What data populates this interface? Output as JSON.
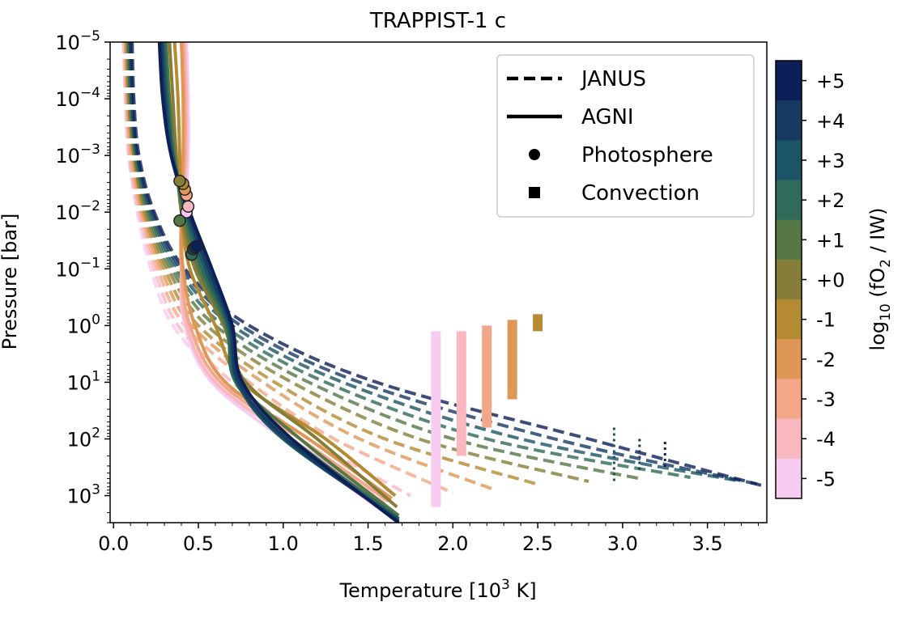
{
  "chart_data": {
    "type": "line",
    "title": "TRAPPIST-1 c",
    "xlabel_prefix": "Temperature [10",
    "xlabel_sup": "3",
    "xlabel_suffix": " K]",
    "ylabel": "Pressure [bar]",
    "xlim": [
      -0.02,
      3.85
    ],
    "ylim_bar": [
      1e-05,
      3000
    ],
    "y_scale": "log-inverted",
    "x_ticks": [
      {
        "value": 0.0,
        "label": "0.0"
      },
      {
        "value": 0.5,
        "label": "0.5"
      },
      {
        "value": 1.0,
        "label": "1.0"
      },
      {
        "value": 1.5,
        "label": "1.5"
      },
      {
        "value": 2.0,
        "label": "2.0"
      },
      {
        "value": 2.5,
        "label": "2.5"
      },
      {
        "value": 3.0,
        "label": "3.0"
      },
      {
        "value": 3.5,
        "label": "3.5"
      }
    ],
    "y_ticks": [
      {
        "exp": -5,
        "base": "10",
        "sup": "−5"
      },
      {
        "exp": -4,
        "base": "10",
        "sup": "−4"
      },
      {
        "exp": -3,
        "base": "10",
        "sup": "−3"
      },
      {
        "exp": -2,
        "base": "10",
        "sup": "−2"
      },
      {
        "exp": -1,
        "base": "10",
        "sup": "−1"
      },
      {
        "exp": 0,
        "base": "10",
        "sup": "0"
      },
      {
        "exp": 1,
        "base": "10",
        "sup": "1"
      },
      {
        "exp": 2,
        "base": "10",
        "sup": "2"
      },
      {
        "exp": 3,
        "base": "10",
        "sup": "3"
      }
    ],
    "legend": {
      "position": "top-right",
      "entries": [
        {
          "style": "dashed",
          "label": "JANUS"
        },
        {
          "style": "solid",
          "label": "AGNI"
        },
        {
          "style": "circle",
          "label": "Photosphere"
        },
        {
          "style": "square",
          "label": "Convection"
        }
      ]
    },
    "colorbar": {
      "label_prefix": "log",
      "label_sub": "10",
      "label_mid": " (fO",
      "label_sub2": "2",
      "label_suffix": " / IW)",
      "levels": [
        {
          "value": 5,
          "label": "+5",
          "color": "#0c1f58"
        },
        {
          "value": 4,
          "label": "+4",
          "color": "#173a63"
        },
        {
          "value": 3,
          "label": "+3",
          "color": "#1b5464"
        },
        {
          "value": 2,
          "label": "+2",
          "color": "#2f6a5a"
        },
        {
          "value": 1,
          "label": "+1",
          "color": "#557745"
        },
        {
          "value": 0,
          "label": "+0",
          "color": "#857d38"
        },
        {
          "value": -1,
          "label": "-1",
          "color": "#b48a32"
        },
        {
          "value": -2,
          "label": "-2",
          "color": "#df9758"
        },
        {
          "value": -3,
          "label": "-3",
          "color": "#f4a688"
        },
        {
          "value": -4,
          "label": "-4",
          "color": "#f9b7c0"
        },
        {
          "value": -5,
          "label": "-5",
          "color": "#f8cbf0"
        }
      ]
    },
    "series": [
      {
        "model": "JANUS",
        "fo2": -5,
        "color": "#f8cbf0",
        "points": [
          [
            0.06,
            -5
          ],
          [
            0.07,
            -4
          ],
          [
            0.09,
            -3
          ],
          [
            0.14,
            -2
          ],
          [
            0.22,
            -1
          ],
          [
            0.35,
            0
          ],
          [
            0.65,
            1
          ],
          [
            1.05,
            2
          ],
          [
            1.6,
            3.1
          ]
        ]
      },
      {
        "model": "JANUS",
        "fo2": -4,
        "color": "#f9b7c0",
        "points": [
          [
            0.06,
            -5
          ],
          [
            0.07,
            -4
          ],
          [
            0.09,
            -3
          ],
          [
            0.15,
            -2
          ],
          [
            0.24,
            -1
          ],
          [
            0.38,
            0
          ],
          [
            0.7,
            1
          ],
          [
            1.15,
            2
          ],
          [
            1.75,
            3.0
          ]
        ]
      },
      {
        "model": "JANUS",
        "fo2": -3,
        "color": "#f4a688",
        "points": [
          [
            0.07,
            -5
          ],
          [
            0.08,
            -4
          ],
          [
            0.1,
            -3
          ],
          [
            0.16,
            -2
          ],
          [
            0.26,
            -1
          ],
          [
            0.42,
            0
          ],
          [
            0.8,
            1
          ],
          [
            1.3,
            2
          ],
          [
            2.0,
            2.95
          ]
        ]
      },
      {
        "model": "JANUS",
        "fo2": -2,
        "color": "#df9758",
        "points": [
          [
            0.07,
            -5
          ],
          [
            0.08,
            -4
          ],
          [
            0.11,
            -3
          ],
          [
            0.17,
            -2
          ],
          [
            0.28,
            -1
          ],
          [
            0.46,
            0
          ],
          [
            0.88,
            1
          ],
          [
            1.45,
            2
          ],
          [
            2.25,
            2.9
          ]
        ]
      },
      {
        "model": "JANUS",
        "fo2": -1,
        "color": "#b48a32",
        "points": [
          [
            0.08,
            -5
          ],
          [
            0.09,
            -4
          ],
          [
            0.12,
            -3
          ],
          [
            0.18,
            -2
          ],
          [
            0.3,
            -1
          ],
          [
            0.5,
            0
          ],
          [
            0.95,
            1
          ],
          [
            1.6,
            2
          ],
          [
            2.5,
            2.8
          ]
        ]
      },
      {
        "model": "JANUS",
        "fo2": 0,
        "color": "#857d38",
        "points": [
          [
            0.08,
            -5
          ],
          [
            0.09,
            -4
          ],
          [
            0.12,
            -3
          ],
          [
            0.19,
            -2
          ],
          [
            0.32,
            -1
          ],
          [
            0.55,
            0
          ],
          [
            1.05,
            1
          ],
          [
            1.8,
            2
          ],
          [
            2.8,
            2.75
          ]
        ]
      },
      {
        "model": "JANUS",
        "fo2": 1,
        "color": "#557745",
        "points": [
          [
            0.09,
            -5
          ],
          [
            0.1,
            -4
          ],
          [
            0.13,
            -3
          ],
          [
            0.2,
            -2
          ],
          [
            0.34,
            -1
          ],
          [
            0.6,
            0
          ],
          [
            1.15,
            1
          ],
          [
            2.0,
            2
          ],
          [
            3.1,
            2.7
          ]
        ]
      },
      {
        "model": "JANUS",
        "fo2": 2,
        "color": "#2f6a5a",
        "points": [
          [
            0.09,
            -5
          ],
          [
            0.1,
            -4
          ],
          [
            0.13,
            -3
          ],
          [
            0.21,
            -2
          ],
          [
            0.36,
            -1
          ],
          [
            0.65,
            0
          ],
          [
            1.25,
            1
          ],
          [
            2.2,
            2
          ],
          [
            3.4,
            2.68
          ]
        ]
      },
      {
        "model": "JANUS",
        "fo2": 3,
        "color": "#1b5464",
        "points": [
          [
            0.1,
            -5
          ],
          [
            0.11,
            -4
          ],
          [
            0.14,
            -3
          ],
          [
            0.22,
            -2
          ],
          [
            0.38,
            -1
          ],
          [
            0.7,
            0
          ],
          [
            1.35,
            1
          ],
          [
            2.4,
            2
          ],
          [
            3.7,
            2.75
          ]
        ]
      },
      {
        "model": "JANUS",
        "fo2": 4,
        "color": "#173a63",
        "points": [
          [
            0.1,
            -5
          ],
          [
            0.11,
            -4
          ],
          [
            0.14,
            -3
          ],
          [
            0.23,
            -2
          ],
          [
            0.4,
            -1
          ],
          [
            0.75,
            0
          ],
          [
            1.45,
            1
          ],
          [
            2.6,
            2
          ],
          [
            3.8,
            2.8
          ]
        ]
      },
      {
        "model": "JANUS",
        "fo2": 5,
        "color": "#0c1f58",
        "points": [
          [
            0.11,
            -5
          ],
          [
            0.12,
            -4
          ],
          [
            0.15,
            -3
          ],
          [
            0.24,
            -2
          ],
          [
            0.42,
            -1
          ],
          [
            0.8,
            0
          ],
          [
            1.55,
            1
          ],
          [
            2.8,
            2
          ],
          [
            3.82,
            2.82
          ]
        ]
      },
      {
        "model": "AGNI",
        "fo2": -5,
        "color": "#f8cbf0",
        "points": [
          [
            0.43,
            -5
          ],
          [
            0.44,
            -4
          ],
          [
            0.44,
            -3
          ],
          [
            0.42,
            -2
          ],
          [
            0.4,
            -1
          ],
          [
            0.42,
            0
          ],
          [
            0.58,
            1
          ],
          [
            1.0,
            2
          ],
          [
            1.55,
            3.2
          ]
        ]
      },
      {
        "model": "AGNI",
        "fo2": -4,
        "color": "#f9b7c0",
        "points": [
          [
            0.42,
            -5
          ],
          [
            0.43,
            -4
          ],
          [
            0.43,
            -3
          ],
          [
            0.41,
            -2
          ],
          [
            0.4,
            -1
          ],
          [
            0.43,
            0
          ],
          [
            0.6,
            1
          ],
          [
            1.05,
            2
          ],
          [
            1.6,
            3.15
          ]
        ]
      },
      {
        "model": "AGNI",
        "fo2": -3,
        "color": "#f4a688",
        "points": [
          [
            0.41,
            -5
          ],
          [
            0.42,
            -4
          ],
          [
            0.42,
            -3
          ],
          [
            0.4,
            -2
          ],
          [
            0.4,
            -1
          ],
          [
            0.45,
            0
          ],
          [
            0.63,
            1
          ],
          [
            1.1,
            2
          ],
          [
            1.62,
            3.1
          ]
        ]
      },
      {
        "model": "AGNI",
        "fo2": -2,
        "color": "#df9758",
        "points": [
          [
            0.4,
            -5
          ],
          [
            0.41,
            -4
          ],
          [
            0.41,
            -3
          ],
          [
            0.4,
            -2
          ],
          [
            0.41,
            -1
          ],
          [
            0.48,
            0
          ],
          [
            0.66,
            1
          ],
          [
            1.15,
            2
          ],
          [
            1.64,
            3.05
          ]
        ]
      },
      {
        "model": "AGNI",
        "fo2": -1,
        "color": "#b48a32",
        "points": [
          [
            0.36,
            -5
          ],
          [
            0.38,
            -4
          ],
          [
            0.39,
            -3
          ],
          [
            0.4,
            -2
          ],
          [
            0.45,
            -1
          ],
          [
            0.6,
            0
          ],
          [
            0.76,
            1
          ],
          [
            1.25,
            2
          ],
          [
            1.66,
            3.0
          ]
        ]
      },
      {
        "model": "AGNI",
        "fo2": 0,
        "color": "#857d38",
        "points": [
          [
            0.33,
            -5
          ],
          [
            0.35,
            -4
          ],
          [
            0.37,
            -3
          ],
          [
            0.4,
            -2
          ],
          [
            0.48,
            -1
          ],
          [
            0.65,
            0
          ],
          [
            0.78,
            1
          ],
          [
            1.2,
            2
          ],
          [
            1.67,
            3.2
          ]
        ]
      },
      {
        "model": "AGNI",
        "fo2": 1,
        "color": "#557745",
        "points": [
          [
            0.31,
            -5
          ],
          [
            0.33,
            -4
          ],
          [
            0.36,
            -3
          ],
          [
            0.41,
            -2
          ],
          [
            0.5,
            -1
          ],
          [
            0.66,
            0
          ],
          [
            0.74,
            1
          ],
          [
            1.1,
            2
          ],
          [
            1.68,
            3.35
          ]
        ]
      },
      {
        "model": "AGNI",
        "fo2": 2,
        "color": "#2f6a5a",
        "points": [
          [
            0.3,
            -5
          ],
          [
            0.32,
            -4
          ],
          [
            0.35,
            -3
          ],
          [
            0.42,
            -2
          ],
          [
            0.52,
            -1
          ],
          [
            0.67,
            0
          ],
          [
            0.72,
            1
          ],
          [
            1.05,
            2
          ],
          [
            1.68,
            3.4
          ]
        ]
      },
      {
        "model": "AGNI",
        "fo2": 3,
        "color": "#1b5464",
        "points": [
          [
            0.29,
            -5
          ],
          [
            0.31,
            -4
          ],
          [
            0.35,
            -3
          ],
          [
            0.43,
            -2
          ],
          [
            0.54,
            -1
          ],
          [
            0.68,
            0
          ],
          [
            0.73,
            1
          ],
          [
            1.0,
            2
          ],
          [
            1.68,
            3.42
          ]
        ]
      },
      {
        "model": "AGNI",
        "fo2": 4,
        "color": "#173a63",
        "points": [
          [
            0.28,
            -5
          ],
          [
            0.3,
            -4
          ],
          [
            0.34,
            -3
          ],
          [
            0.44,
            -2
          ],
          [
            0.56,
            -1
          ],
          [
            0.69,
            0
          ],
          [
            0.74,
            1
          ],
          [
            1.02,
            2
          ],
          [
            1.68,
            3.45
          ]
        ]
      },
      {
        "model": "AGNI",
        "fo2": 5,
        "color": "#0c1f58",
        "points": [
          [
            0.27,
            -5
          ],
          [
            0.29,
            -4
          ],
          [
            0.34,
            -3
          ],
          [
            0.45,
            -2
          ],
          [
            0.58,
            -1
          ],
          [
            0.7,
            0
          ],
          [
            0.76,
            1
          ],
          [
            1.05,
            2
          ],
          [
            1.68,
            3.48
          ]
        ]
      }
    ],
    "convection_regions": [
      {
        "fo2": -5,
        "color": "#f8cbf0",
        "x": 1.9,
        "p_top_exp": 0.1,
        "p_bot_exp": 3.2,
        "style": "thick"
      },
      {
        "fo2": -4,
        "color": "#f9b7c0",
        "x": 2.05,
        "p_top_exp": 0.1,
        "p_bot_exp": 2.3,
        "style": "thick"
      },
      {
        "fo2": -3,
        "color": "#f4a688",
        "x": 2.2,
        "p_top_exp": 0.0,
        "p_bot_exp": 1.8,
        "style": "thick"
      },
      {
        "fo2": -2,
        "color": "#df9758",
        "x": 2.35,
        "p_top_exp": -0.1,
        "p_bot_exp": 1.3,
        "style": "thick"
      },
      {
        "fo2": -1,
        "color": "#b48a32",
        "x": 2.5,
        "p_top_exp": -0.2,
        "p_bot_exp": 0.1,
        "style": "thick"
      },
      {
        "fo2": 3,
        "color": "#1b5464",
        "x": 2.95,
        "p_top_exp": 1.8,
        "p_bot_exp": 2.75,
        "style": "dotted"
      },
      {
        "fo2": 4,
        "color": "#173a63",
        "x": 3.1,
        "p_top_exp": 2.0,
        "p_bot_exp": 2.6,
        "style": "dotted"
      },
      {
        "fo2": 5,
        "color": "#0c1f58",
        "x": 3.25,
        "p_top_exp": 2.05,
        "p_bot_exp": 2.5,
        "style": "dotted"
      }
    ],
    "photosphere_points": [
      {
        "fo2": -5,
        "color": "#f8cbf0",
        "x": 0.43,
        "p_exp": -2.0
      },
      {
        "fo2": -4,
        "color": "#f9b7c0",
        "x": 0.44,
        "p_exp": -2.1
      },
      {
        "fo2": -3,
        "color": "#f4a688",
        "x": 0.43,
        "p_exp": -2.3
      },
      {
        "fo2": -2,
        "color": "#df9758",
        "x": 0.42,
        "p_exp": -2.4
      },
      {
        "fo2": -1,
        "color": "#b48a32",
        "x": 0.41,
        "p_exp": -2.5
      },
      {
        "fo2": 0,
        "color": "#857d38",
        "x": 0.39,
        "p_exp": -2.55
      },
      {
        "fo2": 1,
        "color": "#557745",
        "x": 0.39,
        "p_exp": -1.85
      },
      {
        "fo2": 2,
        "color": "#2f6a5a",
        "x": 0.46,
        "p_exp": -1.25
      },
      {
        "fo2": 3,
        "color": "#1b5464",
        "x": 0.47,
        "p_exp": -1.35
      },
      {
        "fo2": 4,
        "color": "#173a63",
        "x": 0.48,
        "p_exp": -1.38
      },
      {
        "fo2": 5,
        "color": "#0c1f58",
        "x": 0.49,
        "p_exp": -1.4
      }
    ]
  }
}
